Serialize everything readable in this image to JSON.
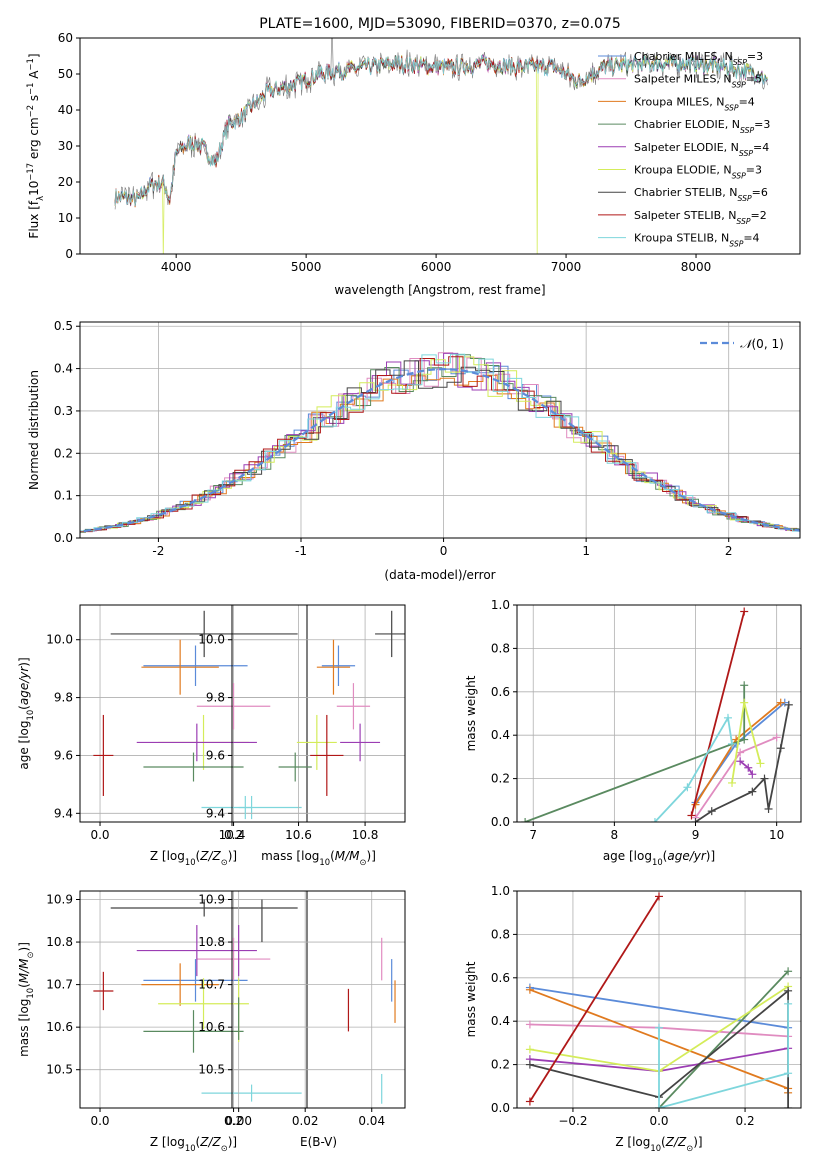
{
  "colors": {
    "Chabrier MILES": "#5b8bd9",
    "Salpeter MILES": "#e08cc0",
    "Kroupa MILES": "#e07a1f",
    "Chabrier ELODIE": "#5a8a60",
    "Salpeter ELODIE": "#9b3db3",
    "Kroupa ELODIE": "#d4ec5a",
    "Chabrier STELIB": "#444444",
    "Salpeter STELIB": "#b01818",
    "Kroupa STELIB": "#7ed6dc"
  },
  "chart_data": [
    {
      "id": "spectrum",
      "type": "line",
      "title": "PLATE=1600, MJD=53090, FIBERID=0370, z=0.075",
      "xlabel": "wavelength [Angstrom, rest frame]",
      "ylabel": "Flux [fλ10⁻¹⁷ erg cm⁻² s⁻¹ A⁻¹]",
      "xlim": [
        3260,
        8800
      ],
      "ylim": [
        0,
        60
      ],
      "xticks": [
        4000,
        5000,
        6000,
        7000,
        8000
      ],
      "yticks": [
        0,
        10,
        20,
        30,
        40,
        50,
        60
      ],
      "legend_position": "top-right",
      "legend": [
        {
          "label": "Chabrier MILES, N",
          "sub": "SSP",
          "val": "=3"
        },
        {
          "label": "Salpeter MILES, N",
          "sub": "SSP",
          "val": "=5"
        },
        {
          "label": "Kroupa MILES, N",
          "sub": "SSP",
          "val": "=4"
        },
        {
          "label": "Chabrier ELODIE, N",
          "sub": "SSP",
          "val": "=3"
        },
        {
          "label": "Salpeter ELODIE, N",
          "sub": "SSP",
          "val": "=4"
        },
        {
          "label": "Kroupa ELODIE, N",
          "sub": "SSP",
          "val": "=3"
        },
        {
          "label": "Chabrier STELIB, N",
          "sub": "SSP",
          "val": "=6"
        },
        {
          "label": "Salpeter STELIB, N",
          "sub": "SSP",
          "val": "=2"
        },
        {
          "label": "Kroupa STELIB, N",
          "sub": "SSP",
          "val": "=4"
        }
      ],
      "continuum": [
        [
          3530,
          16
        ],
        [
          3700,
          15
        ],
        [
          3800,
          19
        ],
        [
          3900,
          20
        ],
        [
          3950,
          15
        ],
        [
          4000,
          28
        ],
        [
          4100,
          31
        ],
        [
          4200,
          30
        ],
        [
          4300,
          25
        ],
        [
          4400,
          36
        ],
        [
          4500,
          38
        ],
        [
          4700,
          45
        ],
        [
          4900,
          47
        ],
        [
          5100,
          50
        ],
        [
          5300,
          51
        ],
        [
          5500,
          52
        ],
        [
          5700,
          53
        ],
        [
          6000,
          52
        ],
        [
          6200,
          52
        ],
        [
          6400,
          53
        ],
        [
          6600,
          52
        ],
        [
          6900,
          52
        ],
        [
          7100,
          48
        ],
        [
          7300,
          52
        ],
        [
          7600,
          53
        ],
        [
          7900,
          53
        ],
        [
          8200,
          52
        ],
        [
          8500,
          50
        ],
        [
          8550,
          47
        ]
      ],
      "model_dropouts": [
        {
          "series": "Kroupa ELODIE",
          "x": [
            3900,
            6780
          ]
        },
        {
          "series": "Salpeter STELIB",
          "x": [
            7420
          ]
        }
      ]
    },
    {
      "id": "residuals",
      "type": "step",
      "xlabel": "(data-model)/error",
      "ylabel": "Normed distribution",
      "xlim": [
        -2.55,
        2.5
      ],
      "ylim": [
        0,
        0.51
      ],
      "xticks": [
        -2,
        -1,
        0,
        1,
        2
      ],
      "yticks": [
        0.0,
        0.1,
        0.2,
        0.3,
        0.4,
        0.5
      ],
      "reference_label": "N(0,1)",
      "reference_color": "#5b8bd9",
      "legend_position": "top-right"
    },
    {
      "id": "z-age",
      "type": "errorbar",
      "xlabel": "Z [log10(Z/Z⊙)]",
      "ylabel": "age [log10(age/yr)]",
      "xlim": [
        -0.03,
        0.31
      ],
      "ylim": [
        9.37,
        10.12
      ],
      "xticks": [
        0.0,
        0.2
      ],
      "yticks": [
        9.4,
        9.6,
        9.8,
        10.0
      ],
      "points": [
        {
          "s": "Chabrier MILES",
          "x": 0.143,
          "xe": 0.078,
          "y": 9.91,
          "ye": 0.07
        },
        {
          "s": "Kroupa MILES",
          "x": 0.12,
          "xe": 0.058,
          "y": 9.905,
          "ye": 0.095
        },
        {
          "s": "Salpeter MILES",
          "x": 0.2,
          "xe": 0.055,
          "y": 9.77,
          "ye": 0.08
        },
        {
          "s": "Kroupa ELODIE",
          "x": 0.155,
          "xe": 0.068,
          "y": 9.645,
          "ye": 0.095
        },
        {
          "s": "Salpeter ELODIE",
          "x": 0.145,
          "xe": 0.09,
          "y": 9.645,
          "ye": 0.065
        },
        {
          "s": "Chabrier ELODIE",
          "x": 0.14,
          "xe": 0.075,
          "y": 9.56,
          "ye": 0.05
        },
        {
          "s": "Chabrier STELIB",
          "x": 0.156,
          "xe": 0.14,
          "y": 10.02,
          "ye": 0.08
        },
        {
          "s": "Salpeter STELIB",
          "x": 0.005,
          "xe": 0.015,
          "y": 9.6,
          "ye": 0.14
        },
        {
          "s": "Kroupa STELIB",
          "x": 0.227,
          "xe": 0.075,
          "y": 9.42,
          "ye": 0.04
        }
      ]
    },
    {
      "id": "mass-age",
      "type": "errorbar",
      "xlabel": "mass [log10(M/M⊙)]",
      "ylabel": "",
      "xlim": [
        10.4,
        10.92
      ],
      "ylim": [
        9.37,
        10.12
      ],
      "xticks": [
        10.4,
        10.6,
        10.8
      ],
      "yticks": [
        9.4,
        9.6,
        9.8,
        10.0
      ],
      "points": [
        {
          "s": "Chabrier MILES",
          "x": 10.72,
          "xe": 0.05,
          "y": 9.91,
          "ye": 0.07
        },
        {
          "s": "Kroupa MILES",
          "x": 10.705,
          "xe": 0.05,
          "y": 9.905,
          "ye": 0.095
        },
        {
          "s": "Salpeter MILES",
          "x": 10.765,
          "xe": 0.05,
          "y": 9.77,
          "ye": 0.08
        },
        {
          "s": "Kroupa ELODIE",
          "x": 10.655,
          "xe": 0.06,
          "y": 9.645,
          "ye": 0.095
        },
        {
          "s": "Salpeter ELODIE",
          "x": 10.785,
          "xe": 0.06,
          "y": 9.645,
          "ye": 0.065
        },
        {
          "s": "Chabrier ELODIE",
          "x": 10.59,
          "xe": 0.05,
          "y": 9.56,
          "ye": 0.05
        },
        {
          "s": "Chabrier STELIB",
          "x": 10.88,
          "xe": 0.05,
          "y": 10.02,
          "ye": 0.08
        },
        {
          "s": "Salpeter STELIB",
          "x": 10.685,
          "xe": 0.05,
          "y": 9.6,
          "ye": 0.14
        },
        {
          "s": "Kroupa STELIB",
          "x": 10.44,
          "xe": 0.02,
          "y": 9.42,
          "ye": 0.04
        }
      ]
    },
    {
      "id": "age-weight",
      "type": "line",
      "xlabel": "age [log10(age/yr)]",
      "ylabel": "mass weight",
      "xlim": [
        6.8,
        10.3
      ],
      "ylim": [
        0,
        1
      ],
      "xticks": [
        7,
        8,
        9,
        10
      ],
      "yticks": [
        0.0,
        0.2,
        0.4,
        0.6,
        0.8,
        1.0
      ],
      "series": [
        {
          "s": "Chabrier MILES",
          "x": [
            9.0,
            9.5,
            10.1
          ],
          "y": [
            0.09,
            0.36,
            0.55
          ]
        },
        {
          "s": "Salpeter MILES",
          "x": [
            9.0,
            9.55,
            10.0
          ],
          "y": [
            0.02,
            0.32,
            0.39
          ]
        },
        {
          "s": "Kroupa MILES",
          "x": [
            9.0,
            9.5,
            10.05
          ],
          "y": [
            0.08,
            0.38,
            0.55
          ]
        },
        {
          "s": "Chabrier ELODIE",
          "x": [
            6.9,
            9.6,
            9.6
          ],
          "y": [
            0.0,
            0.38,
            0.63
          ]
        },
        {
          "s": "Salpeter ELODIE",
          "x": [
            9.55,
            9.65,
            9.7
          ],
          "y": [
            0.28,
            0.25,
            0.22
          ]
        },
        {
          "s": "Kroupa ELODIE",
          "x": [
            9.45,
            9.6,
            9.8
          ],
          "y": [
            0.18,
            0.55,
            0.27
          ]
        },
        {
          "s": "Chabrier STELIB",
          "x": [
            9.0,
            9.2,
            9.7,
            9.85,
            9.9,
            10.05,
            10.15
          ],
          "y": [
            0.0,
            0.05,
            0.14,
            0.2,
            0.06,
            0.34,
            0.54
          ]
        },
        {
          "s": "Salpeter STELIB",
          "x": [
            8.95,
            9.6
          ],
          "y": [
            0.03,
            0.97
          ]
        },
        {
          "s": "Kroupa STELIB",
          "x": [
            8.5,
            8.9,
            9.4,
            9.45
          ],
          "y": [
            0.0,
            0.16,
            0.48,
            0.36
          ]
        }
      ]
    },
    {
      "id": "z-mass",
      "type": "errorbar",
      "xlabel": "Z [log10(Z/Z⊙)]",
      "ylabel": "mass [log10(M/M⊙)]",
      "xlim": [
        -0.03,
        0.31
      ],
      "ylim": [
        10.41,
        10.92
      ],
      "xticks": [
        0.0,
        0.2
      ],
      "yticks": [
        10.5,
        10.6,
        10.7,
        10.8,
        10.9
      ],
      "points": [
        {
          "s": "Chabrier MILES",
          "x": 0.143,
          "xe": 0.078,
          "y": 10.71,
          "ye": 0.05
        },
        {
          "s": "Kroupa MILES",
          "x": 0.12,
          "xe": 0.058,
          "y": 10.7,
          "ye": 0.05
        },
        {
          "s": "Salpeter MILES",
          "x": 0.2,
          "xe": 0.055,
          "y": 10.76,
          "ye": 0.05
        },
        {
          "s": "Kroupa ELODIE",
          "x": 0.155,
          "xe": 0.068,
          "y": 10.655,
          "ye": 0.06
        },
        {
          "s": "Salpeter ELODIE",
          "x": 0.145,
          "xe": 0.09,
          "y": 10.78,
          "ye": 0.06
        },
        {
          "s": "Chabrier ELODIE",
          "x": 0.14,
          "xe": 0.075,
          "y": 10.59,
          "ye": 0.05
        },
        {
          "s": "Chabrier STELIB",
          "x": 0.156,
          "xe": 0.14,
          "y": 10.88,
          "ye": 0.02
        },
        {
          "s": "Salpeter STELIB",
          "x": 0.005,
          "xe": 0.015,
          "y": 10.685,
          "ye": 0.045
        },
        {
          "s": "Kroupa STELIB",
          "x": 0.227,
          "xe": 0.075,
          "y": 10.445,
          "ye": 0.02
        }
      ]
    },
    {
      "id": "ebv-mass",
      "type": "errorbar",
      "xlabel": "E(B-V)",
      "ylabel": "",
      "xlim": [
        -0.002,
        0.05
      ],
      "ylim": [
        10.41,
        10.92
      ],
      "xticks": [
        0.0,
        0.02,
        0.04
      ],
      "yticks": [
        10.5,
        10.6,
        10.7,
        10.8,
        10.9
      ],
      "points": [
        {
          "s": "Chabrier MILES",
          "x": 0.046,
          "xe": 0,
          "y": 10.71,
          "ye": 0.05
        },
        {
          "s": "Kroupa MILES",
          "x": 0.047,
          "xe": 0,
          "y": 10.66,
          "ye": 0.05
        },
        {
          "s": "Salpeter MILES",
          "x": 0.043,
          "xe": 0,
          "y": 10.76,
          "ye": 0.05
        },
        {
          "s": "Kroupa ELODIE",
          "x": 0.0,
          "xe": 0,
          "y": 10.64,
          "ye": 0.075
        },
        {
          "s": "Salpeter ELODIE",
          "x": 0.0,
          "xe": 0,
          "y": 10.78,
          "ye": 0.06
        },
        {
          "s": "Chabrier ELODIE",
          "x": 0.0,
          "xe": 0,
          "y": 10.62,
          "ye": 0.05
        },
        {
          "s": "Chabrier STELIB",
          "x": 0.007,
          "xe": 0,
          "y": 10.85,
          "ye": 0.05
        },
        {
          "s": "Salpeter STELIB",
          "x": 0.033,
          "xe": 0,
          "y": 10.64,
          "ye": 0.05
        },
        {
          "s": "Kroupa STELIB",
          "x": 0.043,
          "xe": 0,
          "y": 10.455,
          "ye": 0.035
        }
      ]
    },
    {
      "id": "z-weight",
      "type": "line",
      "xlabel": "Z [log10(Z/Z⊙)]",
      "ylabel": "mass weight",
      "xlim": [
        -0.33,
        0.33
      ],
      "ylim": [
        0,
        1
      ],
      "xticks": [
        -0.2,
        0.0,
        0.2
      ],
      "yticks": [
        0.0,
        0.2,
        0.4,
        0.6,
        0.8,
        1.0
      ],
      "series": [
        {
          "s": "Chabrier MILES",
          "x": [
            -0.3,
            0.3
          ],
          "y": [
            0.555,
            0.37
          ]
        },
        {
          "s": "Salpeter MILES",
          "x": [
            -0.3,
            0.0,
            0.3
          ],
          "y": [
            0.385,
            0.37,
            0.33
          ]
        },
        {
          "s": "Kroupa MILES",
          "x": [
            -0.3,
            0.3,
            0.3
          ],
          "y": [
            0.545,
            0.09,
            0.07
          ]
        },
        {
          "s": "Chabrier ELODIE",
          "x": [
            0.0,
            0.3
          ],
          "y": [
            0.0,
            0.63
          ]
        },
        {
          "s": "Salpeter ELODIE",
          "x": [
            -0.3,
            0.0,
            0.3
          ],
          "y": [
            0.225,
            0.17,
            0.275
          ]
        },
        {
          "s": "Kroupa ELODIE",
          "x": [
            -0.3,
            0.0,
            0.3
          ],
          "y": [
            0.27,
            0.17,
            0.56
          ]
        },
        {
          "s": "Chabrier STELIB",
          "x": [
            -0.3,
            0.0,
            0.3,
            0.3
          ],
          "y": [
            0.2,
            0.05,
            0.54,
            0.0
          ]
        },
        {
          "s": "Salpeter STELIB",
          "x": [
            -0.3,
            0.0
          ],
          "y": [
            0.03,
            0.975
          ]
        },
        {
          "s": "Kroupa STELIB",
          "x": [
            0.0,
            0.0,
            0.3,
            0.3
          ],
          "y": [
            0.37,
            0.0,
            0.16,
            0.48
          ]
        }
      ]
    }
  ]
}
